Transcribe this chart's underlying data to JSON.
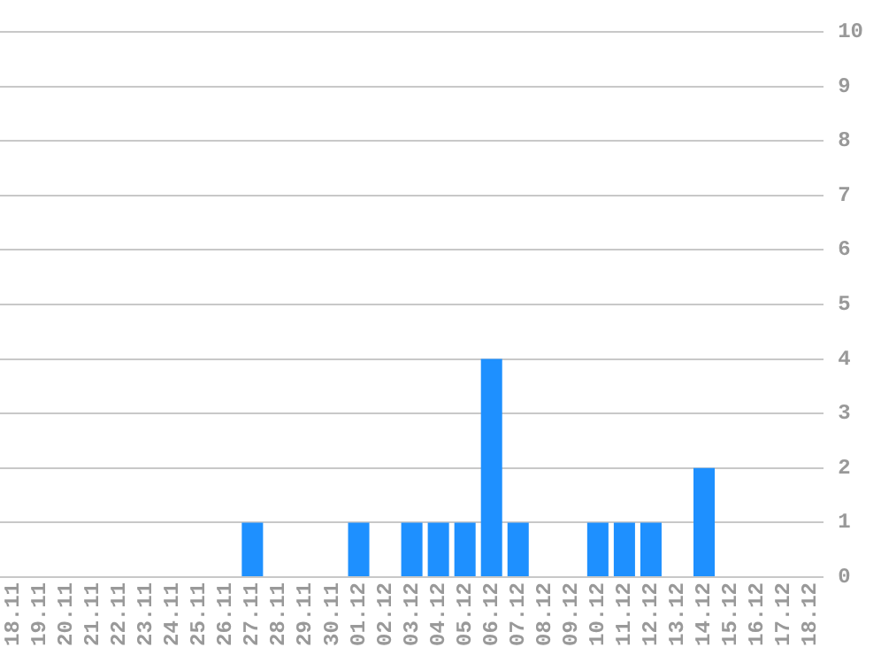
{
  "chart_data": {
    "type": "bar",
    "categories": [
      "18.11",
      "19.11",
      "20.11",
      "21.11",
      "22.11",
      "23.11",
      "24.11",
      "25.11",
      "26.11",
      "27.11",
      "28.11",
      "29.11",
      "30.11",
      "01.12",
      "02.12",
      "03.12",
      "04.12",
      "05.12",
      "06.12",
      "07.12",
      "08.12",
      "09.12",
      "10.12",
      "11.12",
      "12.12",
      "13.12",
      "14.12",
      "15.12",
      "16.12",
      "17.12",
      "18.12"
    ],
    "values": [
      0,
      0,
      0,
      0,
      0,
      0,
      0,
      0,
      0,
      1,
      0,
      0,
      0,
      1,
      0,
      1,
      1,
      1,
      4,
      1,
      0,
      0,
      1,
      1,
      1,
      0,
      2,
      0,
      0,
      0,
      0
    ],
    "color": "#1e90ff",
    "ylim": [
      0,
      10
    ],
    "yticks": [
      0,
      1,
      2,
      3,
      4,
      5,
      6,
      7,
      8,
      9,
      10
    ],
    "grid": "y"
  }
}
